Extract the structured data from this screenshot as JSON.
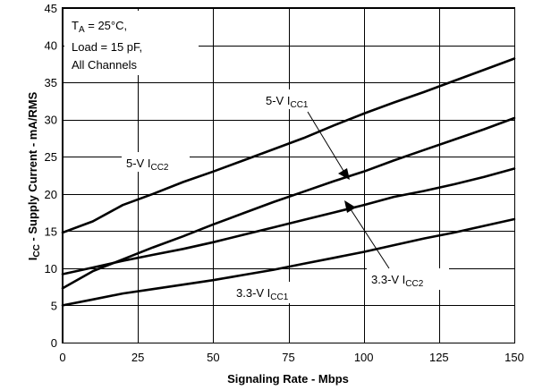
{
  "chart_data": {
    "type": "line",
    "xlabel": "Signaling Rate - Mbps",
    "ylabel": {
      "main": "I",
      "sub": "CC",
      "rest": " - Supply Current - mA/RMS"
    },
    "xlim": [
      0,
      150
    ],
    "ylim": [
      0,
      45
    ],
    "xticks": [
      0,
      25,
      50,
      75,
      100,
      125,
      150
    ],
    "yticks": [
      0,
      5,
      10,
      15,
      20,
      25,
      30,
      35,
      40,
      45
    ],
    "grid": false,
    "conditions": [
      {
        "main": "T",
        "sub": "A",
        "rest": " = 25°C,"
      },
      {
        "main": "Load = 15 pF,",
        "sub": "",
        "rest": ""
      },
      {
        "main": "All Channels",
        "sub": "",
        "rest": ""
      }
    ],
    "series": [
      {
        "name": "5-V ICC2",
        "label": {
          "main": "5-V I",
          "sub": "CC2"
        },
        "x": [
          0,
          10,
          20,
          30,
          40,
          50,
          60,
          70,
          80,
          90,
          100,
          110,
          120,
          130,
          140,
          150
        ],
        "y": [
          14.8,
          16.3,
          18.5,
          20.0,
          21.6,
          23.0,
          24.5,
          26.0,
          27.5,
          29.2,
          30.8,
          32.3,
          33.7,
          35.2,
          36.7,
          38.2
        ]
      },
      {
        "name": "5-V ICC1",
        "label": {
          "main": "5-V I",
          "sub": "CC1"
        },
        "x": [
          0,
          10,
          20,
          30,
          40,
          50,
          60,
          70,
          80,
          90,
          100,
          110,
          120,
          130,
          140,
          150
        ],
        "y": [
          7.3,
          9.6,
          11.2,
          12.8,
          14.3,
          15.9,
          17.4,
          18.9,
          20.3,
          21.7,
          23.0,
          24.5,
          25.9,
          27.3,
          28.7,
          30.2
        ]
      },
      {
        "name": "3.3-V ICC2",
        "label": {
          "main": "3.3-V I",
          "sub": "CC2"
        },
        "x": [
          0,
          10,
          20,
          30,
          40,
          50,
          60,
          70,
          80,
          90,
          100,
          110,
          120,
          130,
          140,
          150
        ],
        "y": [
          9.2,
          10.1,
          11.0,
          11.8,
          12.6,
          13.5,
          14.5,
          15.5,
          16.5,
          17.5,
          18.5,
          19.6,
          20.4,
          21.3,
          22.3,
          23.4
        ]
      },
      {
        "name": "3.3-V ICC1",
        "label": {
          "main": "3.3-V I",
          "sub": "CC1"
        },
        "x": [
          0,
          10,
          20,
          30,
          40,
          50,
          60,
          70,
          80,
          90,
          100,
          110,
          120,
          130,
          140,
          150
        ],
        "y": [
          5.0,
          5.8,
          6.6,
          7.2,
          7.8,
          8.4,
          9.1,
          9.8,
          10.6,
          11.4,
          12.2,
          13.1,
          14.0,
          14.8,
          15.7,
          16.6
        ]
      }
    ]
  }
}
